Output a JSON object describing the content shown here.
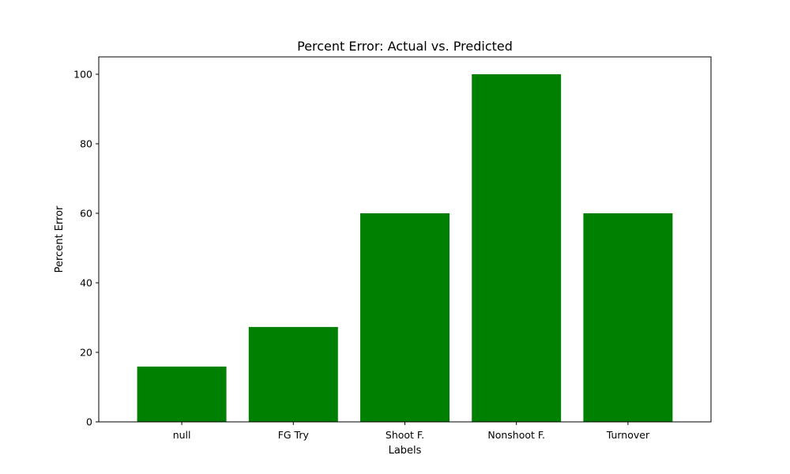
{
  "chart_data": {
    "type": "bar",
    "title": "Percent Error: Actual vs. Predicted",
    "xlabel": "Labels",
    "ylabel": "Percent Error",
    "categories": [
      "null",
      "FG Try",
      "Shoot F.",
      "Nonshoot F.",
      "Turnover"
    ],
    "values": [
      15.9,
      27.3,
      60,
      100,
      60
    ],
    "ylim": [
      0,
      105
    ],
    "yticks": [
      0,
      20,
      40,
      60,
      80,
      100
    ],
    "bar_color": "#008000",
    "grid": false,
    "legend": "none"
  }
}
